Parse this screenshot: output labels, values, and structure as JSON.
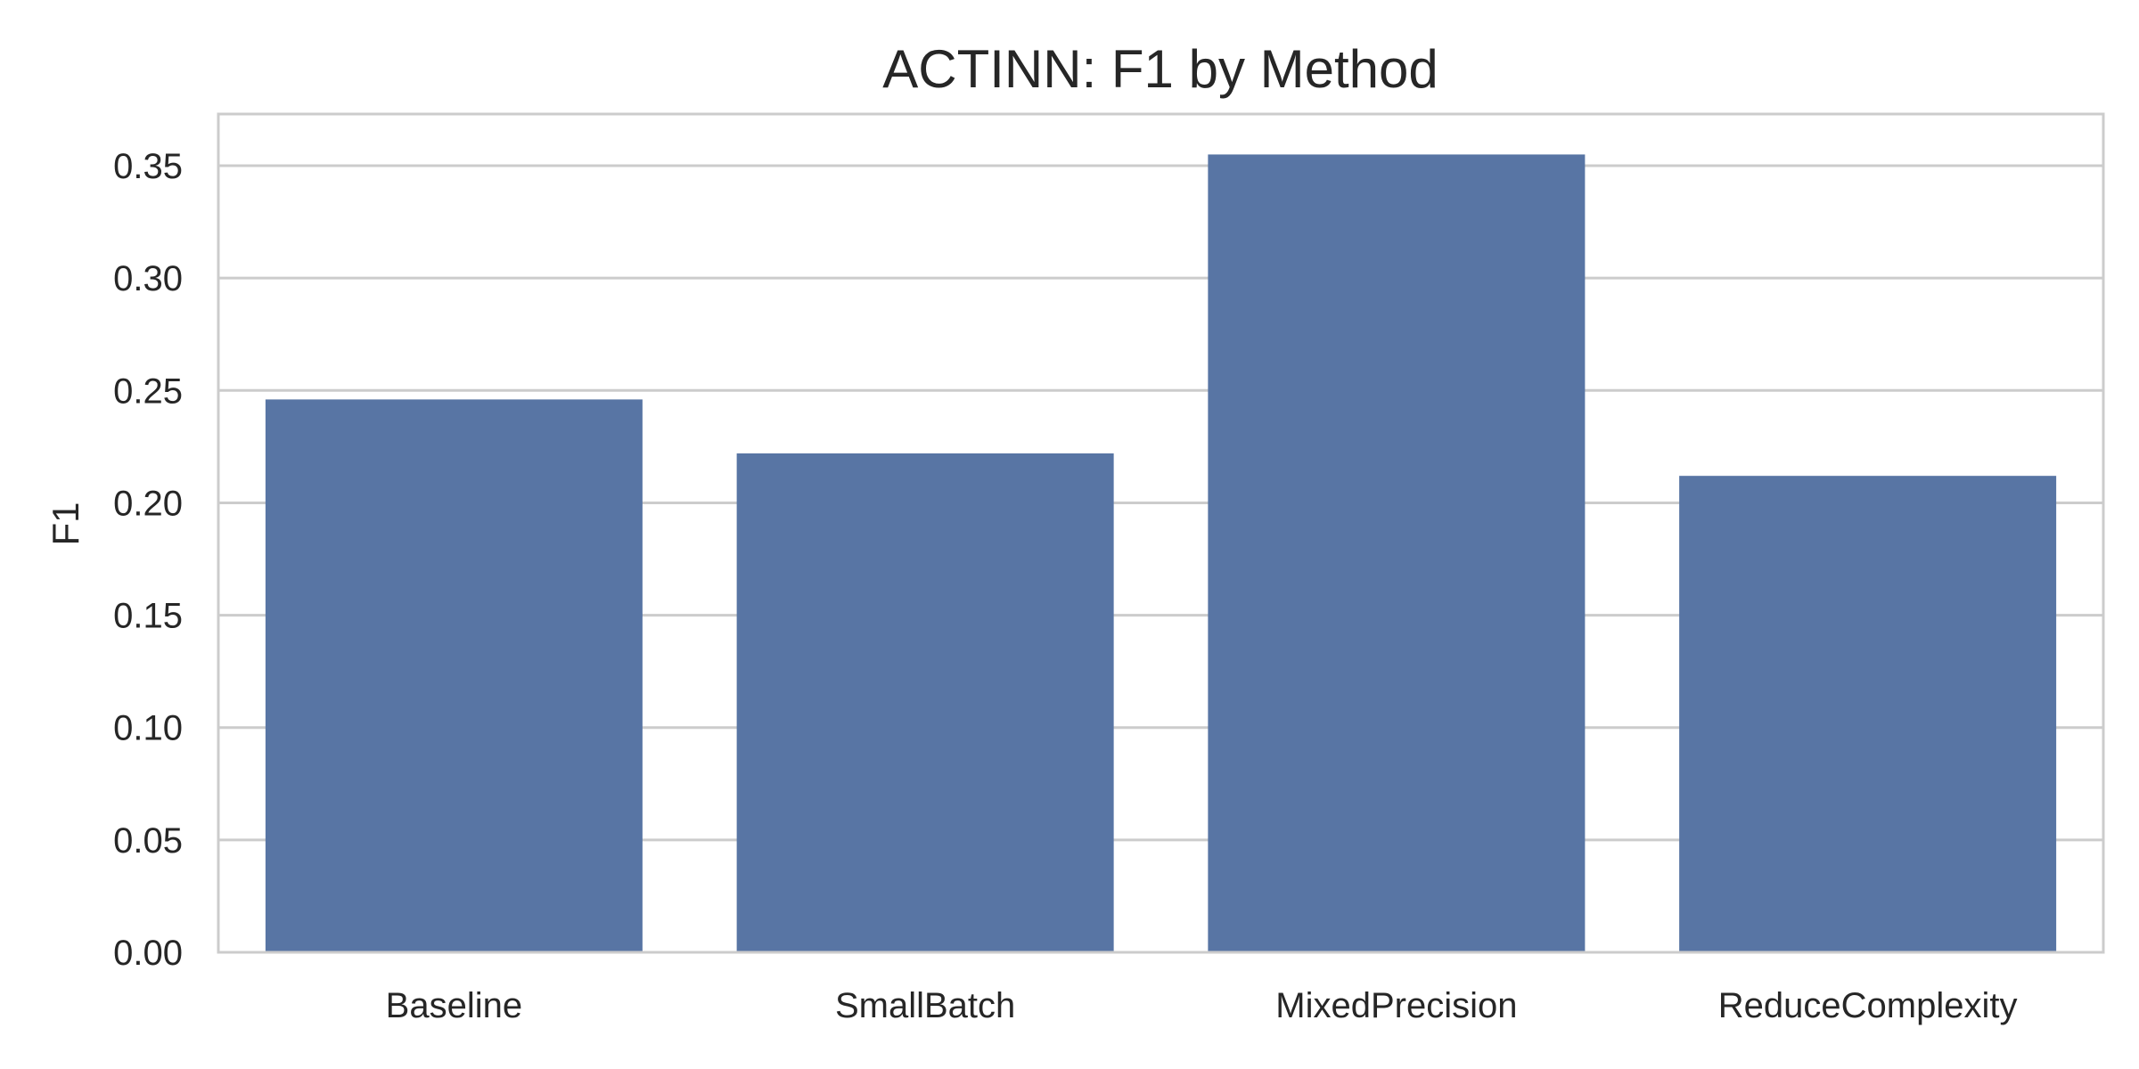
{
  "chart_data": {
    "type": "bar",
    "title": "ACTINN: F1 by Method",
    "xlabel": "",
    "ylabel": "F1",
    "categories": [
      "Baseline",
      "SmallBatch",
      "MixedPrecision",
      "ReduceComplexity"
    ],
    "values": [
      0.246,
      0.222,
      0.355,
      0.212
    ],
    "ylim": [
      0,
      0.373
    ],
    "yticks": [
      "0.00",
      "0.05",
      "0.10",
      "0.15",
      "0.20",
      "0.25",
      "0.30",
      "0.35"
    ],
    "ytick_values": [
      0,
      0.05,
      0.1,
      0.15,
      0.2,
      0.25,
      0.3,
      0.35
    ],
    "grid": true,
    "bar_color": "#5875a4",
    "grid_color": "#cccccc",
    "frame_color": "#cccccc"
  }
}
